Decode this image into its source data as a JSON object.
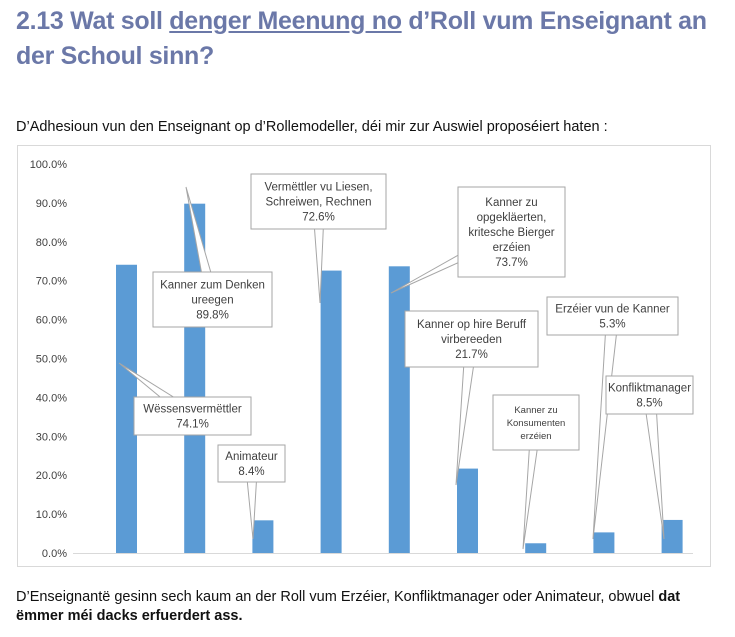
{
  "heading": {
    "prefix": "2.13 Wat soll ",
    "underlined": "denger Meenung no",
    "suffix": " d’Roll vum Enseignant an der Schoul sinn?"
  },
  "intro": "D’Adhesioun vun den Enseignant op d’Rollemodeller, déi mir zur Auswiel proposéiert haten :",
  "outro": {
    "plain": "D’Enseignantë gesinn sech kaum an der Roll vum Erzéier, Konfliktmanager oder Animateur, obwuel ",
    "bold": "dat ëmmer méi dacks erfuerdert ass."
  },
  "chart_data": {
    "type": "bar",
    "title": "",
    "xlabel": "",
    "ylabel": "",
    "ylim": [
      0,
      100
    ],
    "yticks": [
      "0.0%",
      "10.0%",
      "20.0%",
      "30.0%",
      "40.0%",
      "50.0%",
      "60.0%",
      "70.0%",
      "80.0%",
      "90.0%",
      "100.0%"
    ],
    "grid": false,
    "bar_color": "#5b9bd5",
    "bars": [
      {
        "label_lines": [
          "Wëssensvermëttler"
        ],
        "value": 74.1,
        "value_label": "74.1%"
      },
      {
        "label_lines": [
          "Kanner zum Denken",
          "ureegen"
        ],
        "value": 89.8,
        "value_label": "89.8%"
      },
      {
        "label_lines": [
          "Animateur"
        ],
        "value": 8.4,
        "value_label": "8.4%"
      },
      {
        "label_lines": [
          "Vermëttler vu Liesen,",
          "Schreiwen, Rechnen"
        ],
        "value": 72.6,
        "value_label": "72.6%"
      },
      {
        "label_lines": [
          "Kanner zu",
          "opgekläerten,",
          "kritesche Bierger",
          "erzéien"
        ],
        "value": 73.7,
        "value_label": "73.7%"
      },
      {
        "label_lines": [
          "Kanner op hire Beruff",
          "virbereeden"
        ],
        "value": 21.7,
        "value_label": "21.7%"
      },
      {
        "label_lines": [
          "Kanner zu",
          "Konsumenten",
          "erzéien"
        ],
        "value": 2.5,
        "value_label": ""
      },
      {
        "label_lines": [
          "Erzéier vun de Kanner"
        ],
        "value": 5.3,
        "value_label": "5.3%"
      },
      {
        "label_lines": [
          "Konfliktmanager"
        ],
        "value": 8.5,
        "value_label": "8.5%"
      }
    ]
  }
}
